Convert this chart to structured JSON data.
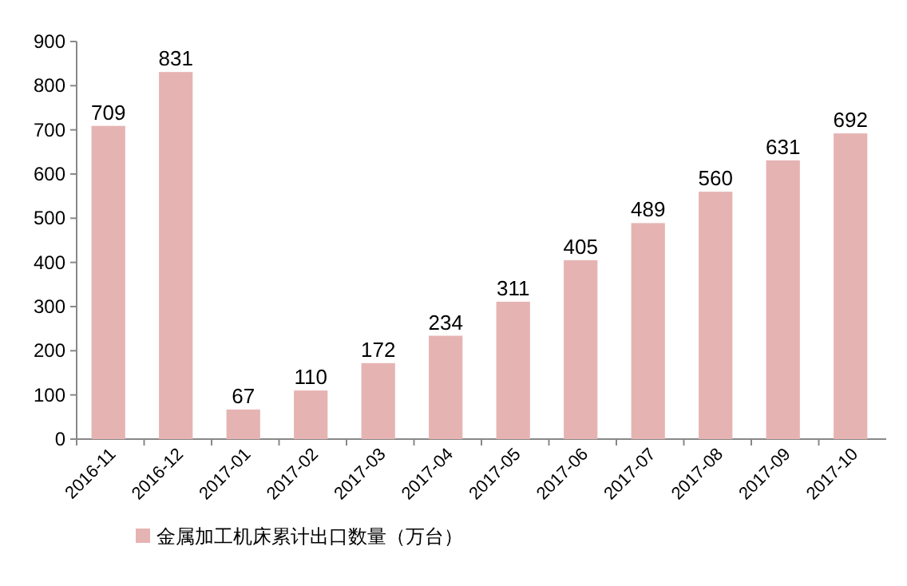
{
  "chart_data": {
    "type": "bar",
    "categories": [
      "2016-11",
      "2016-12",
      "2017-01",
      "2017-02",
      "2017-03",
      "2017-04",
      "2017-05",
      "2017-06",
      "2017-07",
      "2017-08",
      "2017-09",
      "2017-10"
    ],
    "series": [
      {
        "name": "金属加工机床累计出口数量（万台）",
        "color": "#e6b3b3",
        "values": [
          709,
          831,
          67,
          110,
          172,
          234,
          311,
          405,
          489,
          560,
          631,
          692
        ]
      }
    ],
    "ylim": [
      0,
      900
    ],
    "yticks": [
      0,
      100,
      200,
      300,
      400,
      500,
      600,
      700,
      800,
      900
    ],
    "data_labels": true,
    "legend": "bottom",
    "grid": false
  }
}
